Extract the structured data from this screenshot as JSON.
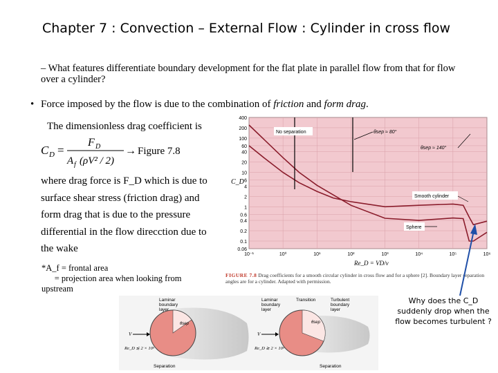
{
  "title": "Chapter 7  : Convection – External Flow : Cylinder in cross flow",
  "question": "–  What features differentiate boundary development for the flat plate in parallel flow from that for flow over a cylinder?",
  "bullet": {
    "dot": "•",
    "pre": "Force imposed by the flow is due to the combination of ",
    "friction": "friction",
    "mid": " and ",
    "form_drag": "form drag",
    "end": "."
  },
  "dimensionless": "The dimensionless drag coefficient is",
  "equation": {
    "lhs": "C",
    "lhs_sub": "D",
    "eq": "=",
    "num": "F",
    "num_sub": "D",
    "den_a": "A",
    "den_a_sub": "f",
    "den_rest": "(ρV² / 2)",
    "arrow": "→",
    "ref": "Figure 7.8"
  },
  "description": [
    "where drag force is F_D  which is due to",
    "surface shear stress (friction drag) and",
    "form drag that is due to the pressure",
    "differential in the flow direcction due to",
    "the wake"
  ],
  "footnote": {
    "line1": "*A_f = frontal area",
    "line2": "      = projection area when looking from",
    "line3": "upstream"
  },
  "chart_data": {
    "type": "line",
    "xlabel": "Re_D = VD/ν",
    "ylabel": "C_D",
    "xscale": "log",
    "yscale": "log",
    "xlim": [
      0.1,
      1000000
    ],
    "ylim": [
      0.06,
      400
    ],
    "x_ticks": [
      "10⁻¹",
      "10⁰",
      "10¹",
      "10²",
      "10³",
      "10⁴",
      "10⁵",
      "10⁶"
    ],
    "y_ticks": [
      "400",
      "200",
      "100",
      "60",
      "40",
      "20",
      "10",
      "6",
      "4",
      "2",
      "1",
      "0.6",
      "0.4",
      "0.2",
      "0.1",
      "0.06"
    ],
    "grid": true,
    "annotations": [
      "No separation",
      "θsep ≈ 80°",
      "θsep ≈ 140°",
      "Smooth cylinder",
      "Sphere"
    ],
    "series": [
      {
        "name": "Smooth cylinder",
        "x": [
          0.1,
          0.3,
          1,
          3,
          10,
          30,
          100,
          1000,
          10000,
          100000,
          200000,
          300000,
          400000,
          1000000
        ],
        "y": [
          60,
          25,
          10,
          5,
          2.8,
          1.8,
          1.4,
          1.0,
          1.1,
          1.2,
          1.1,
          0.5,
          0.3,
          0.38
        ]
      },
      {
        "name": "Sphere",
        "x": [
          0.1,
          1,
          3,
          10,
          100,
          1000,
          10000,
          100000,
          200000,
          300000,
          400000,
          1000000
        ],
        "y": [
          240,
          27,
          10,
          4.2,
          1.1,
          0.46,
          0.4,
          0.47,
          0.45,
          0.1,
          0.1,
          0.18
        ]
      }
    ]
  },
  "caption": {
    "fig": "FIGURE 7.8",
    "text": "  Drag coefficients for a smooth circular cylinder in cross flow and for a sphere [2]. Boundary layer separation angles are for a cylinder. Adapted with permission."
  },
  "diagrams": {
    "left_label1": "Laminar",
    "left_label2": "boundary",
    "left_label3": "layer",
    "left_theta": "θsep",
    "left_v": "V",
    "left_re": "Re_D ≲ 2 × 10⁵",
    "left_sep": "Separation",
    "right_label1": "Laminar",
    "right_label2": "boundary",
    "right_label3": "layer",
    "right_trans": "Transition",
    "right_turb1": "Turbulent",
    "right_turb2": "boundary",
    "right_turb3": "layer",
    "right_theta": "θsep",
    "right_v": "V",
    "right_re": "Re_D ≳ 2 × 10⁵",
    "right_sep": "Separation"
  },
  "question_note": "Why does the C_D suddenly drop when the flow becomes turbulent ?",
  "colors": {
    "chart_bg": "#f2c9cf",
    "curve": "#8a1c2b",
    "arrow": "#1f4fa8"
  }
}
